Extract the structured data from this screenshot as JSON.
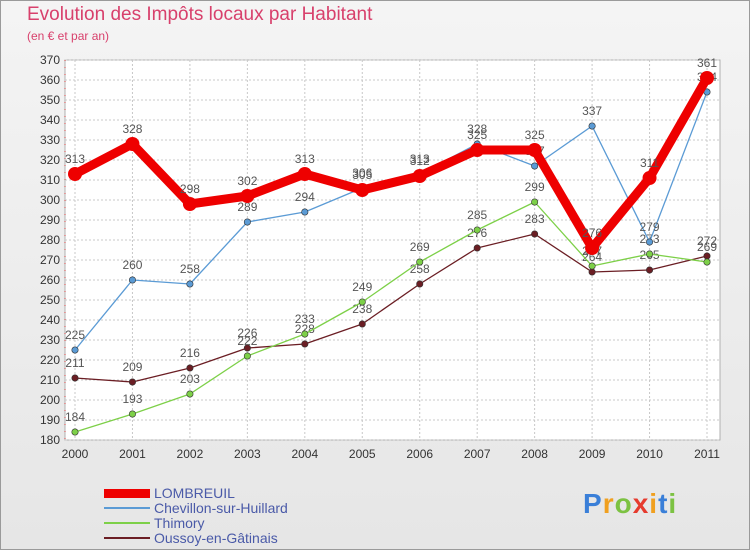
{
  "header": {
    "title": "Evolution des Impôts locaux par Habitant",
    "subtitle": "(en € et par an)"
  },
  "colors": {
    "title": "#d8406c",
    "grid": "#c8c8c8",
    "axis": "#333333",
    "legend_text": "#4a5aa8"
  },
  "chart_data": {
    "type": "line",
    "title": "Evolution des Impôts locaux par Habitant",
    "subtitle": "(en € et par an)",
    "xlabel": "",
    "ylabel": "",
    "ylim": [
      180,
      370
    ],
    "ytick_step": 10,
    "grid": true,
    "legend_position": "bottom-left",
    "x": [
      "2000",
      "2001",
      "2002",
      "2003",
      "2004",
      "2005",
      "2006",
      "2007",
      "2008",
      "2009",
      "2010",
      "2011"
    ],
    "series": [
      {
        "name": "LOMBREUIL",
        "color": "#ee0000",
        "width": "thick",
        "values": [
          313,
          328,
          298,
          302,
          313,
          305,
          312,
          325,
          325,
          276,
          311,
          361
        ],
        "labels": [
          "313",
          "328",
          "298",
          "302",
          "313",
          "305",
          "312",
          "325",
          "325",
          "276",
          "311",
          "361"
        ]
      },
      {
        "name": "Chevillon-sur-Huillard",
        "color": "#5b9bd5",
        "width": "thin",
        "values": [
          225,
          260,
          258,
          289,
          294,
          306,
          313,
          328,
          317,
          337,
          279,
          354
        ],
        "labels": [
          "225",
          "260",
          "258",
          "289",
          "294",
          "306",
          "313",
          "328",
          "317",
          "337",
          "279",
          "354"
        ]
      },
      {
        "name": "Thimory",
        "color": "#7dd048",
        "width": "thin",
        "values": [
          184,
          193,
          203,
          222,
          233,
          249,
          269,
          285,
          299,
          267,
          273,
          269
        ],
        "labels": [
          "184",
          "193",
          "203",
          "222",
          "233",
          "249",
          "269",
          "285",
          "299",
          "267",
          "273",
          "269"
        ]
      },
      {
        "name": "Oussoy-en-Gâtinais",
        "color": "#6b1e24",
        "width": "thin",
        "values": [
          211,
          209,
          216,
          226,
          228,
          238,
          258,
          276,
          283,
          264,
          265,
          272
        ],
        "labels": [
          "211",
          "209",
          "216",
          "226",
          "228",
          "238",
          "258",
          "276",
          "283",
          "264",
          "265",
          "272"
        ]
      }
    ]
  },
  "legend": {
    "items": [
      {
        "label": "LOMBREUIL",
        "color": "#ee0000"
      },
      {
        "label": "Chevillon-sur-Huillard",
        "color": "#5b9bd5"
      },
      {
        "label": "Thimory",
        "color": "#7dd048"
      },
      {
        "label": "Oussoy-en-Gâtinais",
        "color": "#6b1e24"
      }
    ]
  },
  "logo": {
    "text": "Proxiti",
    "letters": [
      "P",
      "r",
      "o",
      "x",
      "i",
      "t",
      "i"
    ],
    "letter_colors": [
      "#3a7fd8",
      "#f0a020",
      "#7cc242",
      "#e63b2e",
      "#f0a020",
      "#3a7fd8",
      "#7cc242"
    ]
  }
}
